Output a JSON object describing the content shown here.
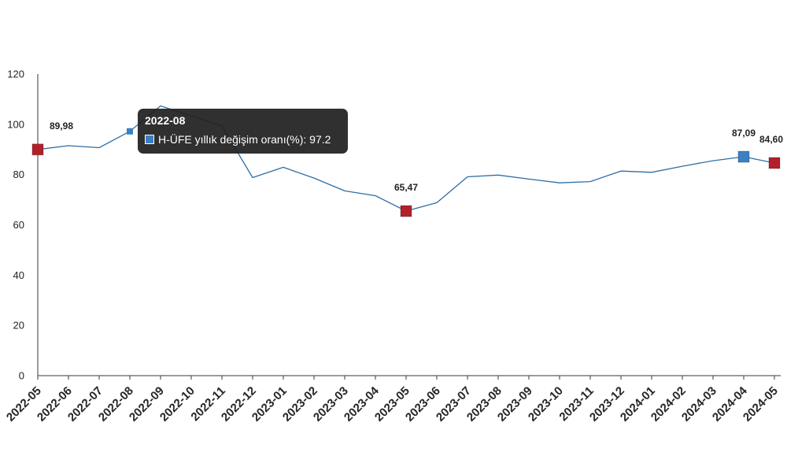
{
  "chart_data": {
    "type": "line",
    "categories": [
      "2022-05",
      "2022-06",
      "2022-07",
      "2022-08",
      "2022-09",
      "2022-10",
      "2022-11",
      "2022-12",
      "2023-01",
      "2023-02",
      "2023-03",
      "2023-04",
      "2023-05",
      "2023-06",
      "2023-07",
      "2023-08",
      "2023-09",
      "2023-10",
      "2023-11",
      "2023-12",
      "2024-01",
      "2024-02",
      "2024-03",
      "2024-04",
      "2024-05"
    ],
    "series": [
      {
        "name": "H-ÜFE yıllık değişim oranı(%)",
        "values": [
          89.98,
          91.5,
          90.7,
          97.2,
          107.3,
          103.4,
          99.3,
          78.8,
          82.9,
          78.6,
          73.5,
          71.6,
          65.47,
          68.8,
          79.1,
          79.8,
          78.2,
          76.7,
          77.2,
          81.4,
          80.9,
          83.3,
          85.5,
          87.09,
          84.6
        ],
        "color": "#2f6ea5"
      }
    ],
    "ylim": [
      0,
      120
    ],
    "yticks": [
      0,
      20,
      40,
      60,
      80,
      100,
      120
    ],
    "grid": false,
    "markers": [
      {
        "index": 0,
        "color": "#b2212b"
      },
      {
        "index": 12,
        "color": "#b2212b"
      },
      {
        "index": 23,
        "color": "#3b80c4"
      },
      {
        "index": 24,
        "color": "#b2212b"
      }
    ],
    "data_labels": [
      {
        "index": 0,
        "text": "89,98"
      },
      {
        "index": 12,
        "text": "65,47"
      },
      {
        "index": 23,
        "text": "87,09"
      },
      {
        "index": 24,
        "text": "84,60"
      }
    ]
  },
  "tooltip": {
    "category": "2022-08",
    "value": "97.2",
    "swatch_color": "#3b80c4"
  }
}
